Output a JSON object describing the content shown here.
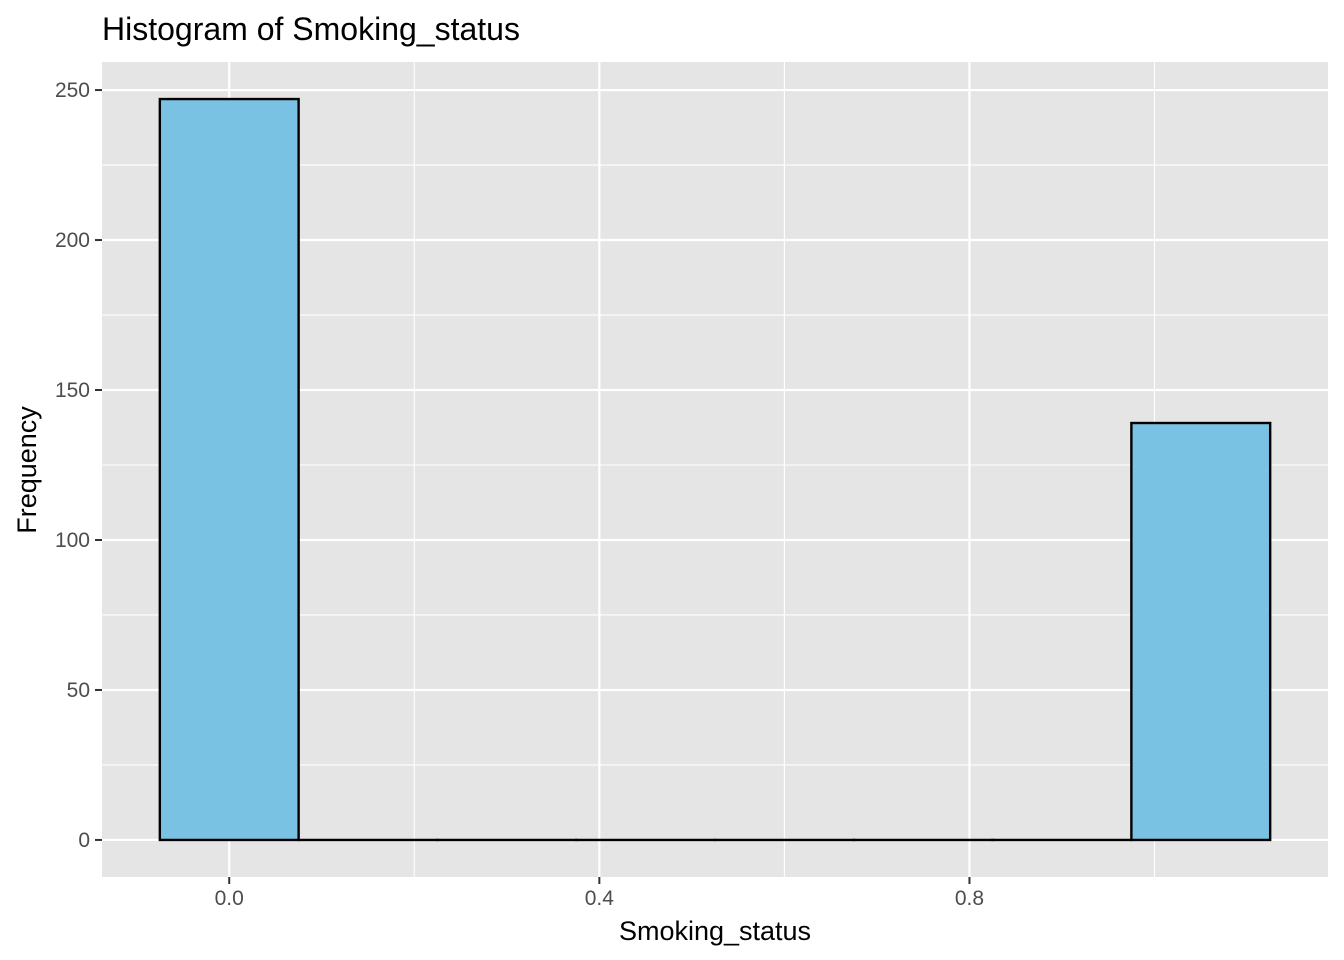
{
  "chart_data": {
    "type": "bar",
    "title": "Histogram of Smoking_status",
    "xlabel": "Smoking_status",
    "ylabel": "Frequency",
    "bins": [
      {
        "x_start": -0.075,
        "x_end": 0.075,
        "count": 247
      },
      {
        "x_start": 0.075,
        "x_end": 0.225,
        "count": 0
      },
      {
        "x_start": 0.225,
        "x_end": 0.375,
        "count": 0
      },
      {
        "x_start": 0.375,
        "x_end": 0.525,
        "count": 0
      },
      {
        "x_start": 0.525,
        "x_end": 0.675,
        "count": 0
      },
      {
        "x_start": 0.675,
        "x_end": 0.825,
        "count": 0
      },
      {
        "x_start": 0.825,
        "x_end": 0.975,
        "count": 0
      },
      {
        "x_start": 0.975,
        "x_end": 1.125,
        "count": 139
      }
    ],
    "xlim": [
      -0.1375,
      1.1875
    ],
    "ylim": [
      -12.35,
      259.35
    ],
    "x_ticks": [
      0.0,
      0.4,
      0.8
    ],
    "x_tick_labels": [
      "0.0",
      "0.4",
      "0.8"
    ],
    "y_ticks": [
      0,
      50,
      100,
      150,
      200,
      250
    ],
    "y_tick_labels": [
      "0",
      "50",
      "100",
      "150",
      "200",
      "250"
    ],
    "grid": true,
    "colors": {
      "panel_background": "#e5e5e5",
      "grid_line": "#ffffff",
      "bar_fill": "#7ac2e4",
      "bar_outline": "#000000",
      "tick_color": "#333333"
    }
  }
}
